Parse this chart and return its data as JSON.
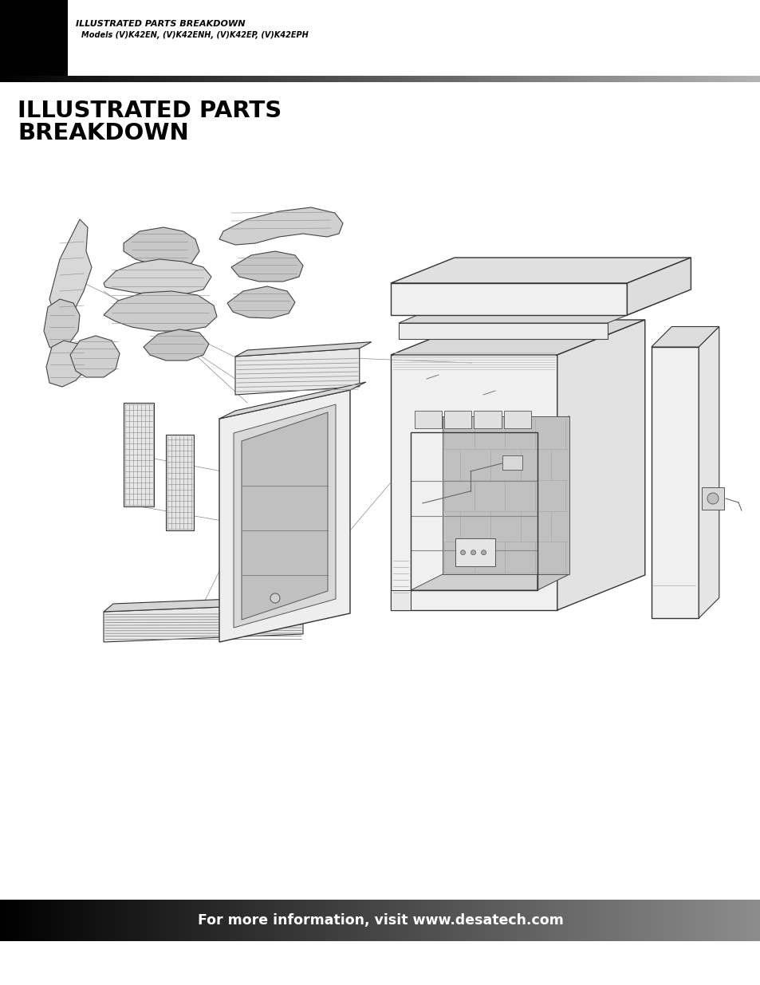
{
  "bg_color": "#ffffff",
  "header_bar_color": "#000000",
  "header_title": "ILLUSTRATED PARTS BREAKDOWN",
  "header_subtitle": "Models (V)K42EN, (V)K42ENH, (V)K42EP, (V)K42EPH",
  "section_title_line1": "ILLUSTRATED PARTS",
  "section_title_line2": "BREAKDOWN",
  "footer_text": "For more information, visit www.desatech.com"
}
